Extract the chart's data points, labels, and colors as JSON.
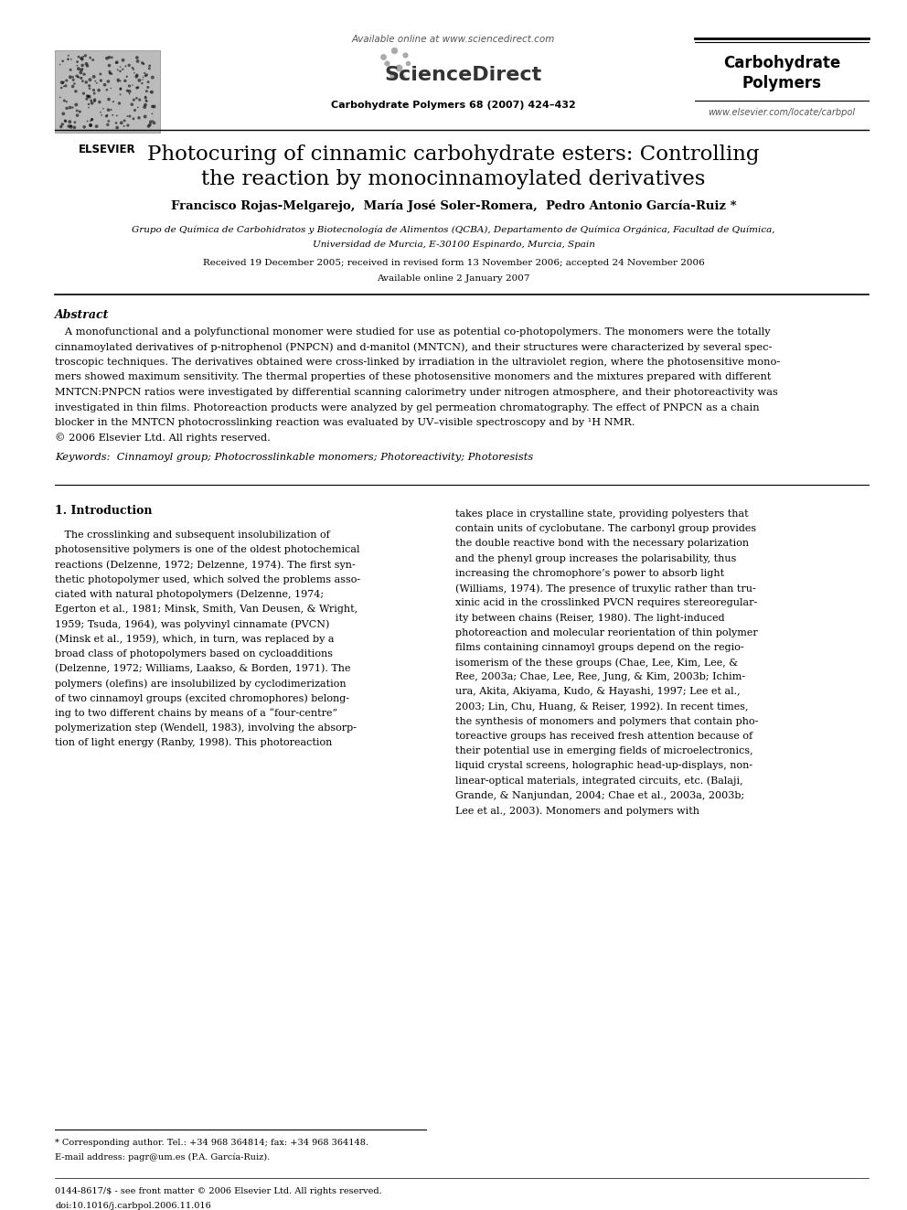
{
  "bg_color": "#ffffff",
  "header": {
    "available_online": "Available online at www.sciencedirect.com",
    "sciencedirect": "ScienceDirect",
    "journal_center": "Carbohydrate Polymers 68 (2007) 424–432",
    "journal_right_line1": "Carbohydrate",
    "journal_right_line2": "Polymers",
    "journal_url": "www.elsevier.com/locate/carbpol",
    "elsevier_label": "ELSEVIER"
  },
  "title_line1": "Photocuring of cinnamic carbohydrate esters: Controlling",
  "title_line2": "the reaction by monocinnamoylated derivatives",
  "authors": "Francisco Rojas-Melgarejo,  María José Soler-Romera,  Pedro Antonio García-Ruiz *",
  "affiliation1": "Grupo de Química de Carbohidratos y Biotecnología de Alimentos (QCBA), Departamento de Química Orgánica, Facultad de Química,",
  "affiliation2": "Universidad de Murcia, E-30100 Espinardo, Murcia, Spain",
  "received": "Received 19 December 2005; received in revised form 13 November 2006; accepted 24 November 2006",
  "available": "Available online 2 January 2007",
  "abstract_title": "Abstract",
  "keywords": "Keywords:  Cinnamoyl group; Photocrosslinkable monomers; Photoreactivity; Photoresists",
  "section1_title": "1. Introduction",
  "footnote1": "* Corresponding author. Tel.: +34 968 364814; fax: +34 968 364148.",
  "footnote2": "E-mail address: pagr@um.es (P.A. García-Ruiz).",
  "footer1": "0144-8617/$ - see front matter © 2006 Elsevier Ltd. All rights reserved.",
  "footer2": "doi:10.1016/j.carbpol.2006.11.016",
  "abstract_lines": [
    "   A monofunctional and a polyfunctional monomer were studied for use as potential co-photopolymers. The monomers were the totally",
    "cinnamoylated derivatives of p-nitrophenol (PNPCN) and d-manitol (MNTCN), and their structures were characterized by several spec-",
    "troscopic techniques. The derivatives obtained were cross-linked by irradiation in the ultraviolet region, where the photosensitive mono-",
    "mers showed maximum sensitivity. The thermal properties of these photosensitive monomers and the mixtures prepared with different",
    "MNTCN:PNPCN ratios were investigated by differential scanning calorimetry under nitrogen atmosphere, and their photoreactivity was",
    "investigated in thin films. Photoreaction products were analyzed by gel permeation chromatography. The effect of PNPCN as a chain",
    "blocker in the MNTCN photocrosslinking reaction was evaluated by UV–visible spectroscopy and by ¹H NMR.",
    "© 2006 Elsevier Ltd. All rights reserved."
  ],
  "col1_lines": [
    "   The crosslinking and subsequent insolubilization of",
    "photosensitive polymers is one of the oldest photochemical",
    "reactions (Delzenne, 1972; Delzenne, 1974). The first syn-",
    "thetic photopolymer used, which solved the problems asso-",
    "ciated with natural photopolymers (Delzenne, 1974;",
    "Egerton et al., 1981; Minsk, Smith, Van Deusen, & Wright,",
    "1959; Tsuda, 1964), was polyvinyl cinnamate (PVCN)",
    "(Minsk et al., 1959), which, in turn, was replaced by a",
    "broad class of photopolymers based on cycloadditions",
    "(Delzenne, 1972; Williams, Laakso, & Borden, 1971). The",
    "polymers (olefins) are insolubilized by cyclodimerization",
    "of two cinnamoyl groups (excited chromophores) belong-",
    "ing to two different chains by means of a “four-centre”",
    "polymerization step (Wendell, 1983), involving the absorp-",
    "tion of light energy (Ranby, 1998). This photoreaction"
  ],
  "col2_lines": [
    "takes place in crystalline state, providing polyesters that",
    "contain units of cyclobutane. The carbonyl group provides",
    "the double reactive bond with the necessary polarization",
    "and the phenyl group increases the polarisability, thus",
    "increasing the chromophore’s power to absorb light",
    "(Williams, 1974). The presence of truxylic rather than tru-",
    "xinic acid in the crosslinked PVCN requires stereoregular-",
    "ity between chains (Reiser, 1980). The light-induced",
    "photoreaction and molecular reorientation of thin polymer",
    "films containing cinnamoyl groups depend on the regio-",
    "isomerism of the these groups (Chae, Lee, Kim, Lee, &",
    "Ree, 2003a; Chae, Lee, Ree, Jung, & Kim, 2003b; Ichim-",
    "ura, Akita, Akiyama, Kudo, & Hayashi, 1997; Lee et al.,",
    "2003; Lin, Chu, Huang, & Reiser, 1992). In recent times,",
    "the synthesis of monomers and polymers that contain pho-",
    "toreactive groups has received fresh attention because of",
    "their potential use in emerging fields of microelectronics,",
    "liquid crystal screens, holographic head-up-displays, non-",
    "linear-optical materials, integrated circuits, etc. (Balaji,",
    "Grande, & Nanjundan, 2004; Chae et al., 2003a, 2003b;",
    "Lee et al., 2003). Monomers and polymers with"
  ]
}
